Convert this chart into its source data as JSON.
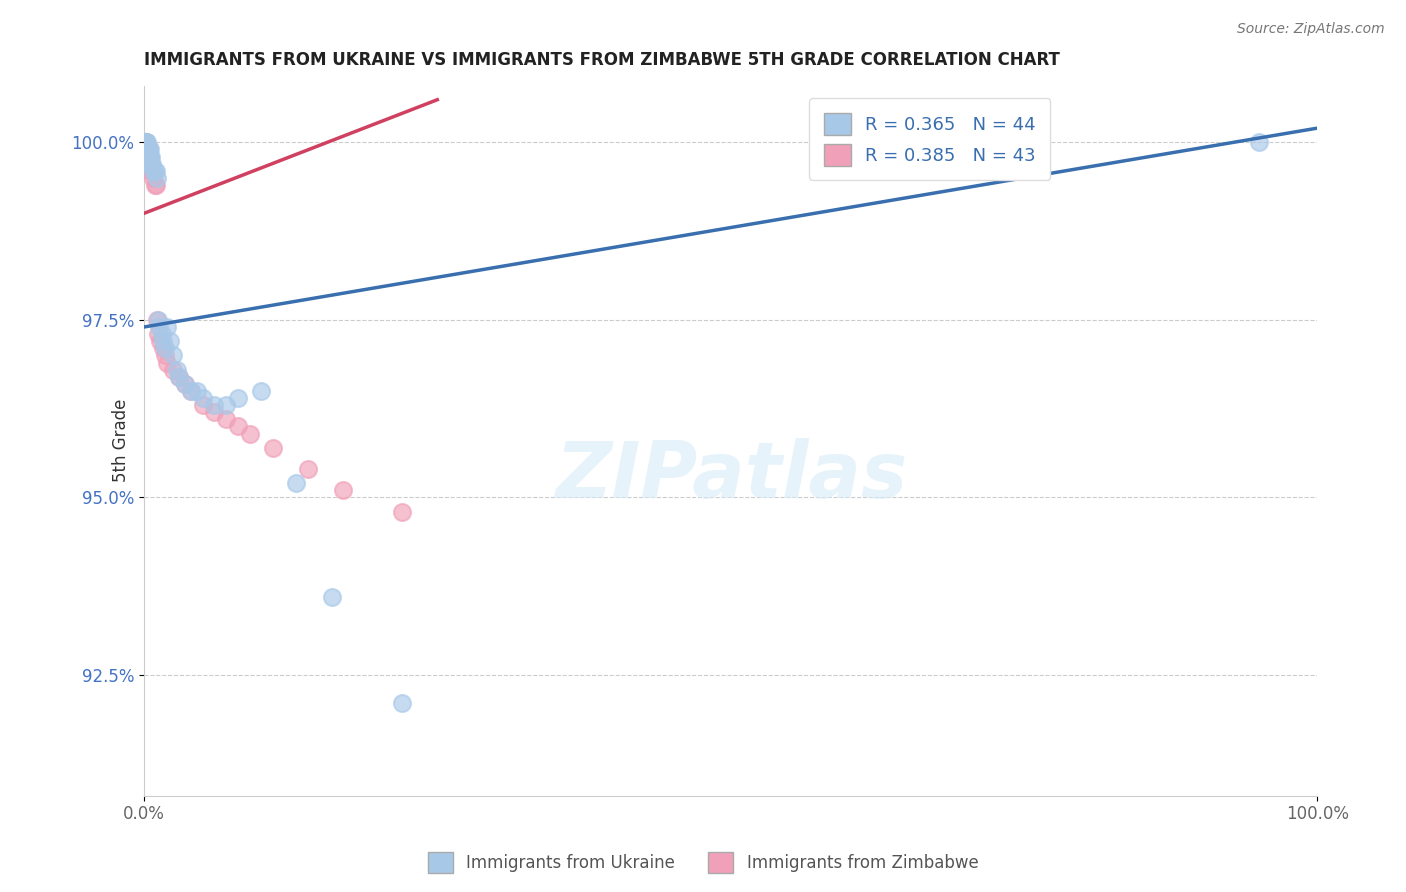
{
  "title": "IMMIGRANTS FROM UKRAINE VS IMMIGRANTS FROM ZIMBABWE 5TH GRADE CORRELATION CHART",
  "source": "Source: ZipAtlas.com",
  "ylabel": "5th Grade",
  "xlim": [
    0.0,
    1.0
  ],
  "ylim": [
    0.908,
    1.008
  ],
  "x_tick_labels": [
    "0.0%",
    "100.0%"
  ],
  "y_tick_labels": [
    "92.5%",
    "95.0%",
    "97.5%",
    "100.0%"
  ],
  "y_tick_vals": [
    0.925,
    0.95,
    0.975,
    1.0
  ],
  "legend_ukraine": "R = 0.365   N = 44",
  "legend_zimbabwe": "R = 0.385   N = 43",
  "ukraine_color": "#a8c8e8",
  "zimbabwe_color": "#f0a0b8",
  "ukraine_line_color": "#3a6faf",
  "zimbabwe_line_color": "#d04060",
  "background_color": "#ffffff",
  "ukraine_x": [
    0.001,
    0.001,
    0.001,
    0.001,
    0.001,
    0.002,
    0.002,
    0.002,
    0.003,
    0.003,
    0.004,
    0.004,
    0.004,
    0.005,
    0.005,
    0.006,
    0.006,
    0.007,
    0.008,
    0.009,
    0.01,
    0.011,
    0.012,
    0.013,
    0.015,
    0.016,
    0.018,
    0.02,
    0.022,
    0.025,
    0.028,
    0.03,
    0.035,
    0.04,
    0.045,
    0.05,
    0.06,
    0.07,
    0.08,
    0.1,
    0.13,
    0.16,
    0.22,
    0.95
  ],
  "ukraine_y": [
    1.0,
    1.0,
    1.0,
    0.999,
    0.999,
    1.0,
    0.999,
    0.998,
    1.0,
    0.999,
    0.999,
    0.998,
    0.997,
    0.999,
    0.998,
    0.998,
    0.997,
    0.997,
    0.996,
    0.996,
    0.996,
    0.995,
    0.975,
    0.974,
    0.973,
    0.972,
    0.971,
    0.974,
    0.972,
    0.97,
    0.968,
    0.967,
    0.966,
    0.965,
    0.965,
    0.964,
    0.963,
    0.963,
    0.964,
    0.965,
    0.952,
    0.936,
    0.921,
    1.0
  ],
  "zimbabwe_x": [
    0.001,
    0.001,
    0.001,
    0.001,
    0.001,
    0.001,
    0.001,
    0.002,
    0.002,
    0.002,
    0.002,
    0.002,
    0.003,
    0.003,
    0.004,
    0.004,
    0.005,
    0.005,
    0.006,
    0.006,
    0.007,
    0.008,
    0.009,
    0.01,
    0.011,
    0.012,
    0.014,
    0.016,
    0.018,
    0.02,
    0.025,
    0.03,
    0.035,
    0.04,
    0.05,
    0.06,
    0.07,
    0.08,
    0.09,
    0.11,
    0.14,
    0.17,
    0.22
  ],
  "zimbabwe_y": [
    1.0,
    1.0,
    1.0,
    1.0,
    0.999,
    0.999,
    0.998,
    1.0,
    0.999,
    0.999,
    0.998,
    0.997,
    0.999,
    0.998,
    0.999,
    0.997,
    0.998,
    0.997,
    0.997,
    0.996,
    0.996,
    0.995,
    0.994,
    0.994,
    0.975,
    0.973,
    0.972,
    0.971,
    0.97,
    0.969,
    0.968,
    0.967,
    0.966,
    0.965,
    0.963,
    0.962,
    0.961,
    0.96,
    0.959,
    0.957,
    0.954,
    0.951,
    0.948
  ]
}
